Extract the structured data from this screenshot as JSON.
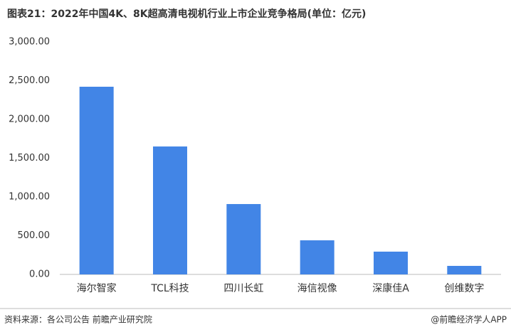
{
  "chart_data": {
    "type": "bar",
    "title": "图表21：2022年中国4K、8K超高清电视机行业上市企业竞争格局(单位：亿元)",
    "categories": [
      "海尔智家",
      "TCL科技",
      "四川长虹",
      "海信视像",
      "深康佳A",
      "创维数字"
    ],
    "values": [
      2422,
      1651,
      908,
      440,
      294,
      110
    ],
    "color": "#4285e6",
    "ylim": [
      0,
      3000
    ],
    "yticks": [
      {
        "value": 0,
        "label": "0.00"
      },
      {
        "value": 500,
        "label": "500.00"
      },
      {
        "value": 1000,
        "label": "1,000.00"
      },
      {
        "value": 1500,
        "label": "1,500.00"
      },
      {
        "value": 2000,
        "label": "2,000.00"
      },
      {
        "value": 2500,
        "label": "2,500.00"
      },
      {
        "value": 3000,
        "label": "3,000.00"
      }
    ],
    "grid": false,
    "source": "资料来源：各公司公告 前瞻产业研究院",
    "credit": "@前瞻经济学人APP"
  }
}
